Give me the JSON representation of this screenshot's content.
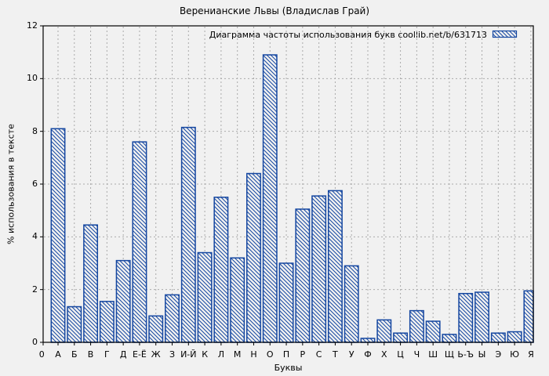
{
  "window": {
    "background_color": "#f1f1f1"
  },
  "chart_data": {
    "type": "bar",
    "title": "Веренианские Львы (Владислав Грай)",
    "legend_entry": "Диаграмма частоты использования букв coollib.net/b/631713",
    "legend_position": "top-right-inside",
    "xlabel": "Буквы",
    "ylabel": "% использования в тексте",
    "ylim": [
      0,
      12
    ],
    "yticks": [
      0,
      2,
      4,
      6,
      8,
      10,
      12
    ],
    "x_origin_label": "0",
    "grid": true,
    "grid_style": "dashed-gray",
    "bar_style": "diagonal-hatch",
    "bar_color": "#1446a0",
    "grid_color": "#aaaaaa",
    "axis_color": "#000000",
    "categories": [
      "А",
      "Б",
      "В",
      "Г",
      "Д",
      "Е-Ё",
      "Ж",
      "З",
      "И-Й",
      "К",
      "Л",
      "М",
      "Н",
      "О",
      "П",
      "Р",
      "С",
      "Т",
      "У",
      "Ф",
      "Х",
      "Ц",
      "Ч",
      "Ш",
      "Щ",
      "Ь-Ъ",
      "Ы",
      "Э",
      "Ю",
      "Я"
    ],
    "values": [
      8.1,
      1.35,
      4.45,
      1.55,
      3.1,
      7.6,
      1.0,
      1.8,
      8.15,
      3.4,
      5.5,
      3.2,
      6.4,
      10.9,
      3.0,
      5.05,
      5.55,
      5.75,
      2.9,
      0.15,
      0.85,
      0.35,
      1.2,
      0.8,
      0.3,
      1.85,
      1.9,
      0.35,
      0.4,
      1.95
    ]
  }
}
